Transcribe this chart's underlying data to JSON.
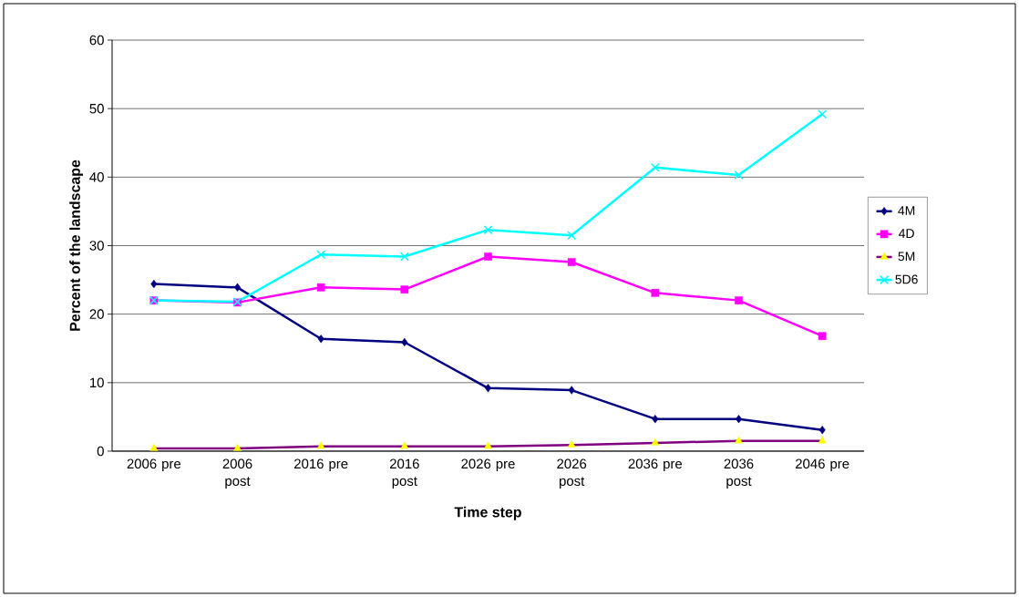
{
  "chart_data": {
    "type": "line",
    "xlabel": "Time step",
    "ylabel": "Percent of the landscape",
    "categories": [
      "2006 pre",
      "2006 post",
      "2016 pre",
      "2016 post",
      "2026 pre",
      "2026 post",
      "2036 pre",
      "2036 post",
      "2046 pre"
    ],
    "ylim": [
      0,
      60
    ],
    "yticks": [
      0,
      10,
      20,
      30,
      40,
      50,
      60
    ],
    "grid": "y",
    "legend": "right",
    "series": [
      {
        "name": "4M",
        "color": "#000080",
        "marker": "diamond",
        "values": [
          24.4,
          23.9,
          16.4,
          15.9,
          9.2,
          8.9,
          4.7,
          4.7,
          3.1
        ]
      },
      {
        "name": "4D",
        "color": "#ff00ff",
        "marker": "square",
        "values": [
          22.0,
          21.7,
          23.9,
          23.6,
          28.4,
          27.6,
          23.1,
          22.0,
          16.8
        ]
      },
      {
        "name": "5M",
        "color": "#800080",
        "marker": "triangle",
        "colors": [
          "#ffff00",
          "#ffff00",
          "#ffff00",
          "#ffff00",
          "#ffff00",
          "#ffff00",
          "#ffff00",
          "#ffff00",
          "#ffff00"
        ],
        "values": [
          0.4,
          0.4,
          0.7,
          0.7,
          0.7,
          0.9,
          1.2,
          1.5,
          1.5
        ]
      },
      {
        "name": "5D6",
        "color": "#00ffff",
        "marker": "cross",
        "values": [
          22.0,
          21.8,
          28.7,
          28.4,
          32.3,
          31.5,
          41.4,
          40.3,
          49.2
        ]
      }
    ]
  }
}
